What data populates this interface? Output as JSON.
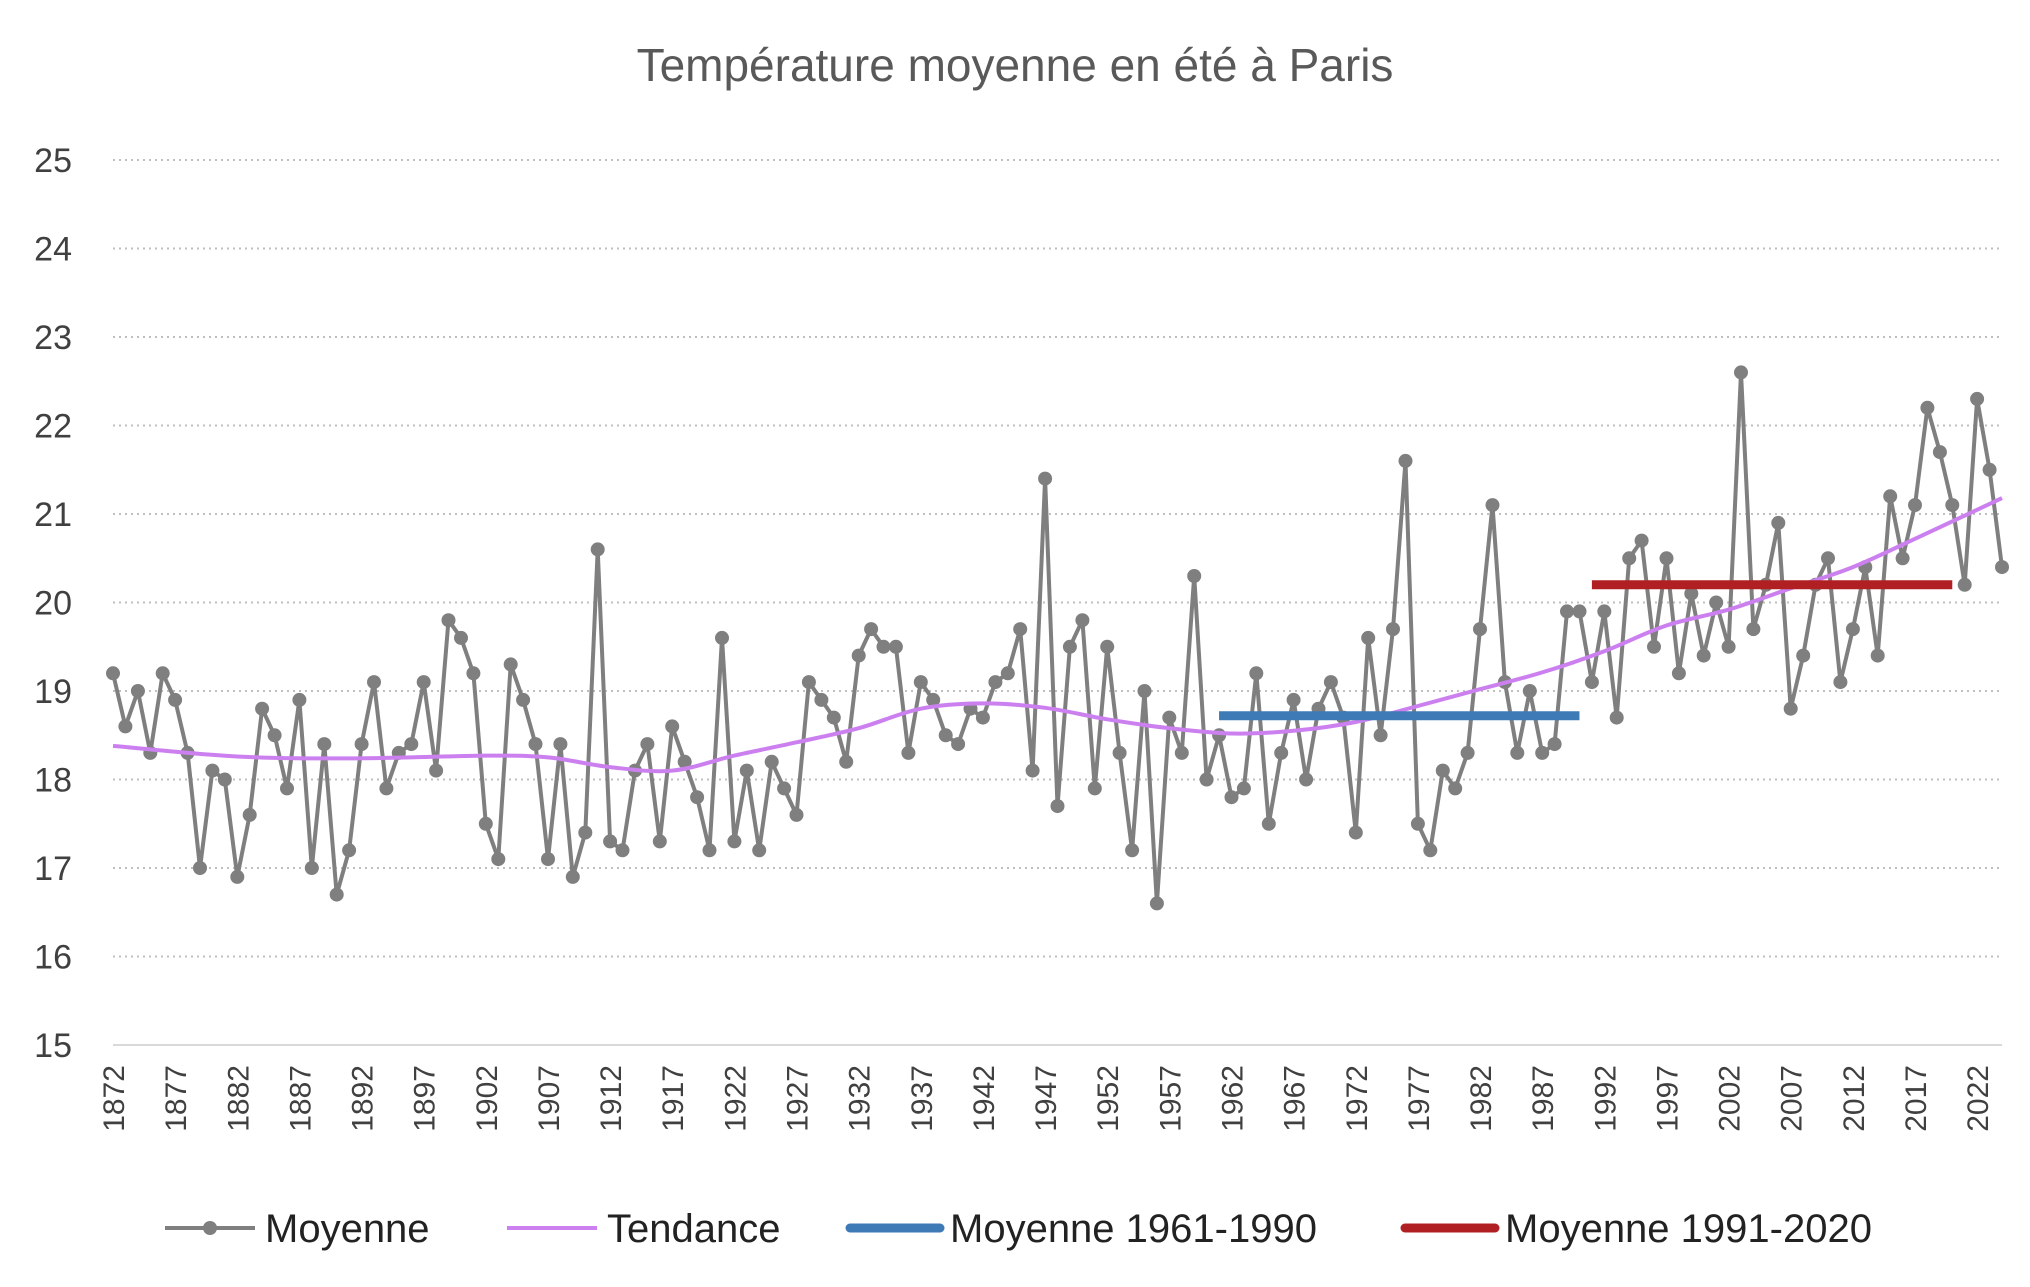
{
  "chart_data": {
    "type": "line",
    "title": "Température moyenne en été à Paris",
    "xlabel": "",
    "ylabel": "",
    "ylim": [
      15,
      25
    ],
    "yticks": [
      15,
      16,
      17,
      18,
      19,
      20,
      21,
      22,
      23,
      24,
      25
    ],
    "xlim": [
      1872,
      2024
    ],
    "xticks": [
      1872,
      1877,
      1882,
      1887,
      1892,
      1897,
      1902,
      1907,
      1912,
      1917,
      1922,
      1927,
      1932,
      1937,
      1942,
      1947,
      1952,
      1957,
      1962,
      1967,
      1972,
      1977,
      1982,
      1987,
      1992,
      1997,
      2002,
      2007,
      2012,
      2017,
      2022
    ],
    "grid": "horizontal dotted",
    "legend_position": "bottom",
    "series": [
      {
        "name": "Moyenne",
        "color": "#7f7f7f",
        "style": "line-markers",
        "x_start": 1872,
        "values": [
          19.2,
          18.6,
          19.0,
          18.3,
          19.2,
          18.9,
          18.3,
          17.0,
          18.1,
          18.0,
          16.9,
          17.6,
          18.8,
          18.5,
          17.9,
          18.9,
          17.0,
          18.4,
          16.7,
          17.2,
          18.4,
          19.1,
          17.9,
          18.3,
          18.4,
          19.1,
          18.1,
          19.8,
          19.6,
          19.2,
          17.5,
          17.1,
          19.3,
          18.9,
          18.4,
          17.1,
          18.4,
          16.9,
          17.4,
          20.6,
          17.3,
          17.2,
          18.1,
          18.4,
          17.3,
          18.6,
          18.2,
          17.8,
          17.2,
          19.6,
          17.3,
          18.1,
          17.2,
          18.2,
          17.9,
          17.6,
          19.1,
          18.9,
          18.7,
          18.2,
          19.4,
          19.7,
          19.5,
          19.5,
          18.3,
          19.1,
          18.9,
          18.5,
          18.4,
          18.8,
          18.7,
          19.1,
          19.2,
          19.7,
          18.1,
          21.4,
          17.7,
          19.5,
          19.8,
          17.9,
          19.5,
          18.3,
          17.2,
          19.0,
          16.6,
          18.7,
          18.3,
          20.3,
          18.0,
          18.5,
          17.8,
          17.9,
          19.2,
          17.5,
          18.3,
          18.9,
          18.0,
          18.8,
          19.1,
          18.7,
          17.4,
          19.6,
          18.5,
          19.7,
          21.6,
          17.5,
          17.2,
          18.1,
          17.9,
          18.3,
          19.7,
          21.1,
          19.1,
          18.3,
          19.0,
          18.3,
          18.4,
          19.9,
          19.9,
          19.1,
          19.9,
          18.7,
          20.5,
          20.7,
          19.5,
          20.5,
          19.2,
          20.1,
          19.4,
          20.0,
          19.5,
          22.6,
          19.7,
          20.2,
          20.9,
          18.8,
          19.4,
          20.2,
          20.5,
          19.1,
          19.7,
          20.4,
          19.4,
          21.2,
          20.5,
          21.1,
          22.2,
          21.7,
          21.1,
          20.2,
          22.3,
          21.5,
          20.4
        ]
      },
      {
        "name": "Tendance",
        "color": "#cc80f0",
        "style": "smooth-line",
        "x": [
          1872,
          1882,
          1892,
          1902,
          1907,
          1912,
          1917,
          1922,
          1927,
          1932,
          1937,
          1942,
          1947,
          1952,
          1957,
          1962,
          1967,
          1972,
          1977,
          1982,
          1987,
          1992,
          1997,
          2002,
          2007,
          2012,
          2017,
          2024
        ],
        "values": [
          18.38,
          18.26,
          18.24,
          18.27,
          18.25,
          18.14,
          18.1,
          18.27,
          18.42,
          18.58,
          18.8,
          18.86,
          18.81,
          18.68,
          18.58,
          18.52,
          18.55,
          18.65,
          18.83,
          19.02,
          19.21,
          19.45,
          19.74,
          19.92,
          20.16,
          20.4,
          20.72,
          21.18
        ]
      },
      {
        "name": "Moyenne 1961-1990",
        "color": "#3e7ab6",
        "style": "thick-line",
        "x": [
          1961,
          1990
        ],
        "values": [
          18.72,
          18.72
        ]
      },
      {
        "name": "Moyenne 1991-2020",
        "color": "#b02023",
        "style": "thick-line",
        "x": [
          1991,
          2020
        ],
        "values": [
          20.2,
          20.2
        ]
      }
    ]
  }
}
